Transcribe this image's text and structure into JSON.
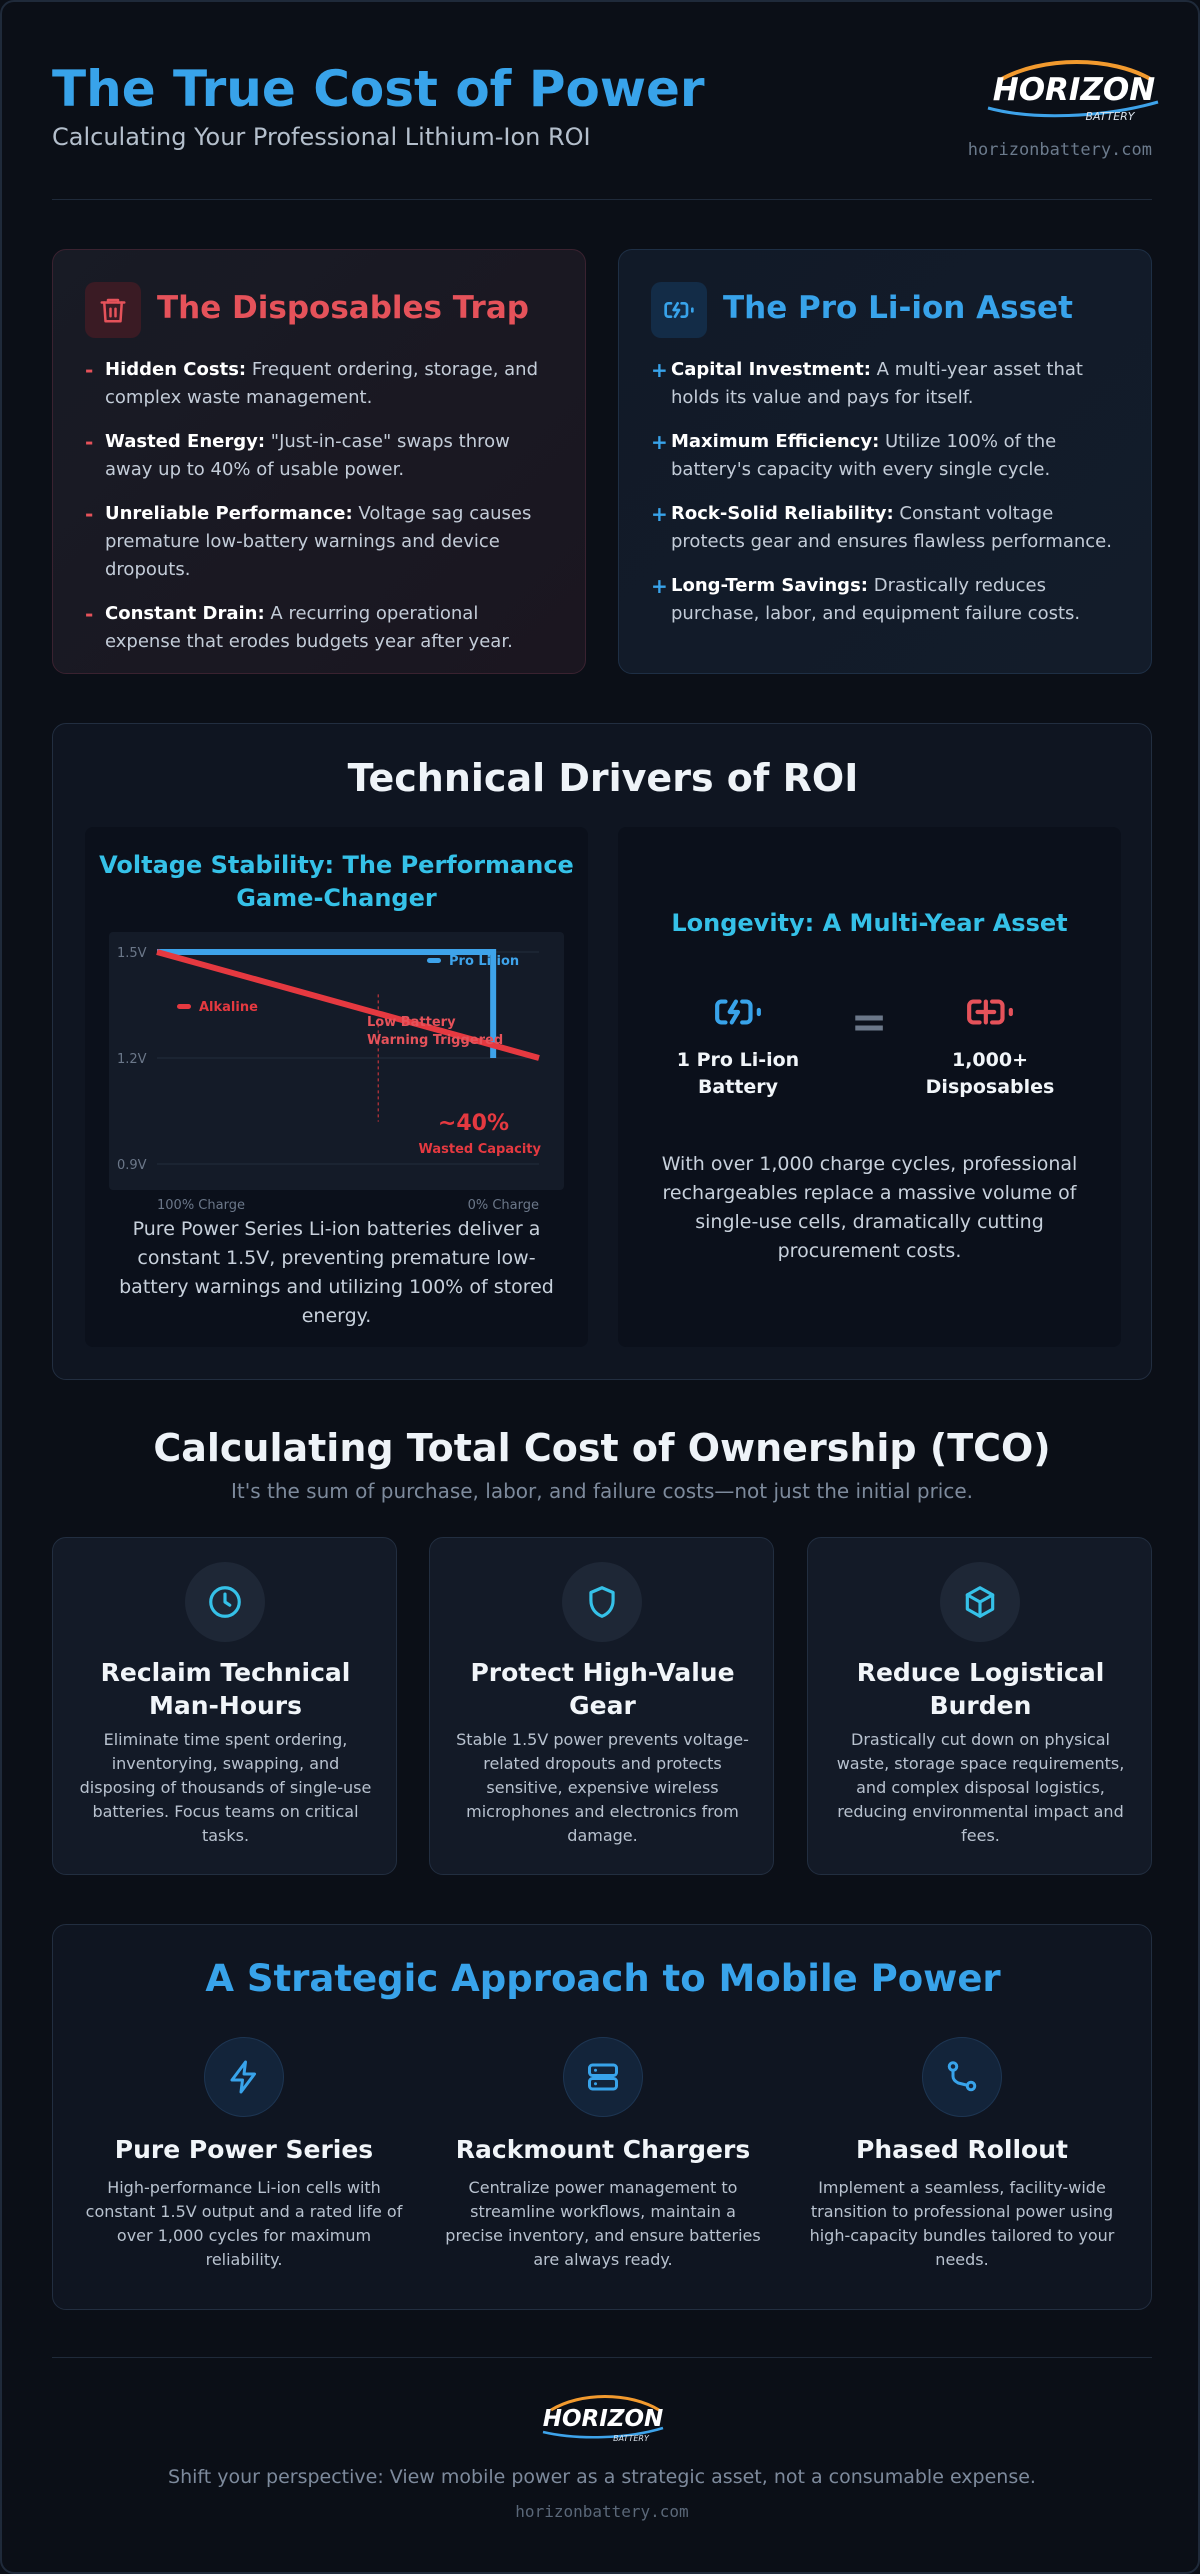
{
  "header": {
    "title": "The True Cost of Power",
    "subtitle": "Calculating Your Professional Lithium-Ion ROI",
    "logo_word": "HORIZON",
    "logo_sub": "BATTERY",
    "url": "horizonbattery.com"
  },
  "trap": {
    "title": "The Disposables Trap",
    "icon": "trash-icon",
    "marker": "-",
    "items": [
      {
        "label": "Hidden Costs:",
        "text": " Frequent ordering, storage, and complex waste management."
      },
      {
        "label": "Wasted Energy:",
        "text": " \"Just-in-case\" swaps throw away up to 40% of usable power."
      },
      {
        "label": "Unreliable Performance:",
        "text": " Voltage sag causes premature low-battery warnings and device dropouts."
      },
      {
        "label": "Constant Drain:",
        "text": " A recurring operational expense that erodes budgets year after year."
      }
    ]
  },
  "asset": {
    "title": "The Pro Li-ion Asset",
    "icon": "battery-charging-icon",
    "marker": "+",
    "items": [
      {
        "label": "Capital Investment:",
        "text": " A multi-year asset that holds its value and pays for itself."
      },
      {
        "label": "Maximum Efficiency:",
        "text": " Utilize 100% of the battery's capacity with every single cycle."
      },
      {
        "label": "Rock-Solid Reliability:",
        "text": " Constant voltage protects gear and ensures flawless performance."
      },
      {
        "label": "Long-Term Savings:",
        "text": " Drastically reduces purchase, labor, and equipment failure costs."
      }
    ]
  },
  "tech": {
    "title": "Technical Drivers of ROI",
    "voltage": {
      "title": "Voltage Stability: The Performance Game-Changer",
      "text": "Pure Power Series Li-ion batteries deliver a constant 1.5V, preventing premature low-battery warnings and utilizing 100% of stored energy."
    },
    "longevity": {
      "title": "Longevity: A Multi-Year Asset",
      "left_label": "1 Pro Li-ion Battery",
      "equals": "=",
      "right_label": "1,000+ Disposables",
      "text": "With over 1,000 charge cycles, professional rechargeables replace a massive volume of single-use cells, dramatically cutting procurement costs."
    }
  },
  "chart_data": {
    "type": "line",
    "title": "",
    "xlabel": "",
    "ylabel": "",
    "x_tick_labels": [
      "100% Charge",
      "0% Charge"
    ],
    "y_ticks": [
      "1.5V",
      "1.2V",
      "0.9V"
    ],
    "ylim": [
      0.9,
      1.5
    ],
    "grid": true,
    "legend": "inside",
    "series": [
      {
        "name": "Pro Li-ion",
        "color": "#3ea3ea",
        "x": [
          0,
          0.88,
          0.88
        ],
        "y": [
          1.5,
          1.5,
          1.2
        ]
      },
      {
        "name": "Alkaline",
        "color": "#e53940",
        "x": [
          0,
          1.0
        ],
        "y": [
          1.5,
          1.2
        ]
      }
    ],
    "annotations": [
      {
        "text": "Low Battery Warning Triggered",
        "x": 0.6
      },
      {
        "text": "~40%",
        "sub": "Wasted Capacity"
      }
    ]
  },
  "tco": {
    "title": "Calculating Total Cost of Ownership (TCO)",
    "subtitle": "It's the sum of purchase, labor, and failure costs—not just the initial price.",
    "cards": [
      {
        "icon": "clock-icon",
        "title": "Reclaim Technical Man-Hours",
        "text": "Eliminate time spent ordering, inventorying, swapping, and disposing of thousands of single-use batteries. Focus teams on critical tasks."
      },
      {
        "icon": "shield-icon",
        "title": "Protect High-Value Gear",
        "text": "Stable 1.5V power prevents voltage-related dropouts and protects sensitive, expensive wireless microphones and electronics from damage."
      },
      {
        "icon": "cube-icon",
        "title": "Reduce Logistical Burden",
        "text": "Drastically cut down on physical waste, storage space requirements, and complex disposal logistics, reducing environmental impact and fees."
      }
    ]
  },
  "strategy": {
    "title": "A Strategic Approach to Mobile Power",
    "cols": [
      {
        "icon": "lightning-icon",
        "title": "Pure Power Series",
        "text": "High-performance Li-ion cells with constant 1.5V output and a rated life of over 1,000 cycles for maximum reliability."
      },
      {
        "icon": "server-icon",
        "title": "Rackmount Chargers",
        "text": "Centralize power management to streamline workflows, maintain a precise inventory, and ensure batteries are always ready."
      },
      {
        "icon": "git-branch-icon",
        "title": "Phased Rollout",
        "text": "Implement a seamless, facility-wide transition to professional power using high-capacity bundles tailored to your needs."
      }
    ]
  },
  "footer": {
    "logo_word": "HORIZON",
    "logo_sub": "BATTERY",
    "text": "Shift your perspective: View mobile power as a strategic asset, not a consumable expense.",
    "url": "horizonbattery.com"
  },
  "colors": {
    "accent_blue": "#38a3ea",
    "accent_cyan": "#35c1e8",
    "danger_red": "#e5525a",
    "background": "#0b0f17"
  }
}
